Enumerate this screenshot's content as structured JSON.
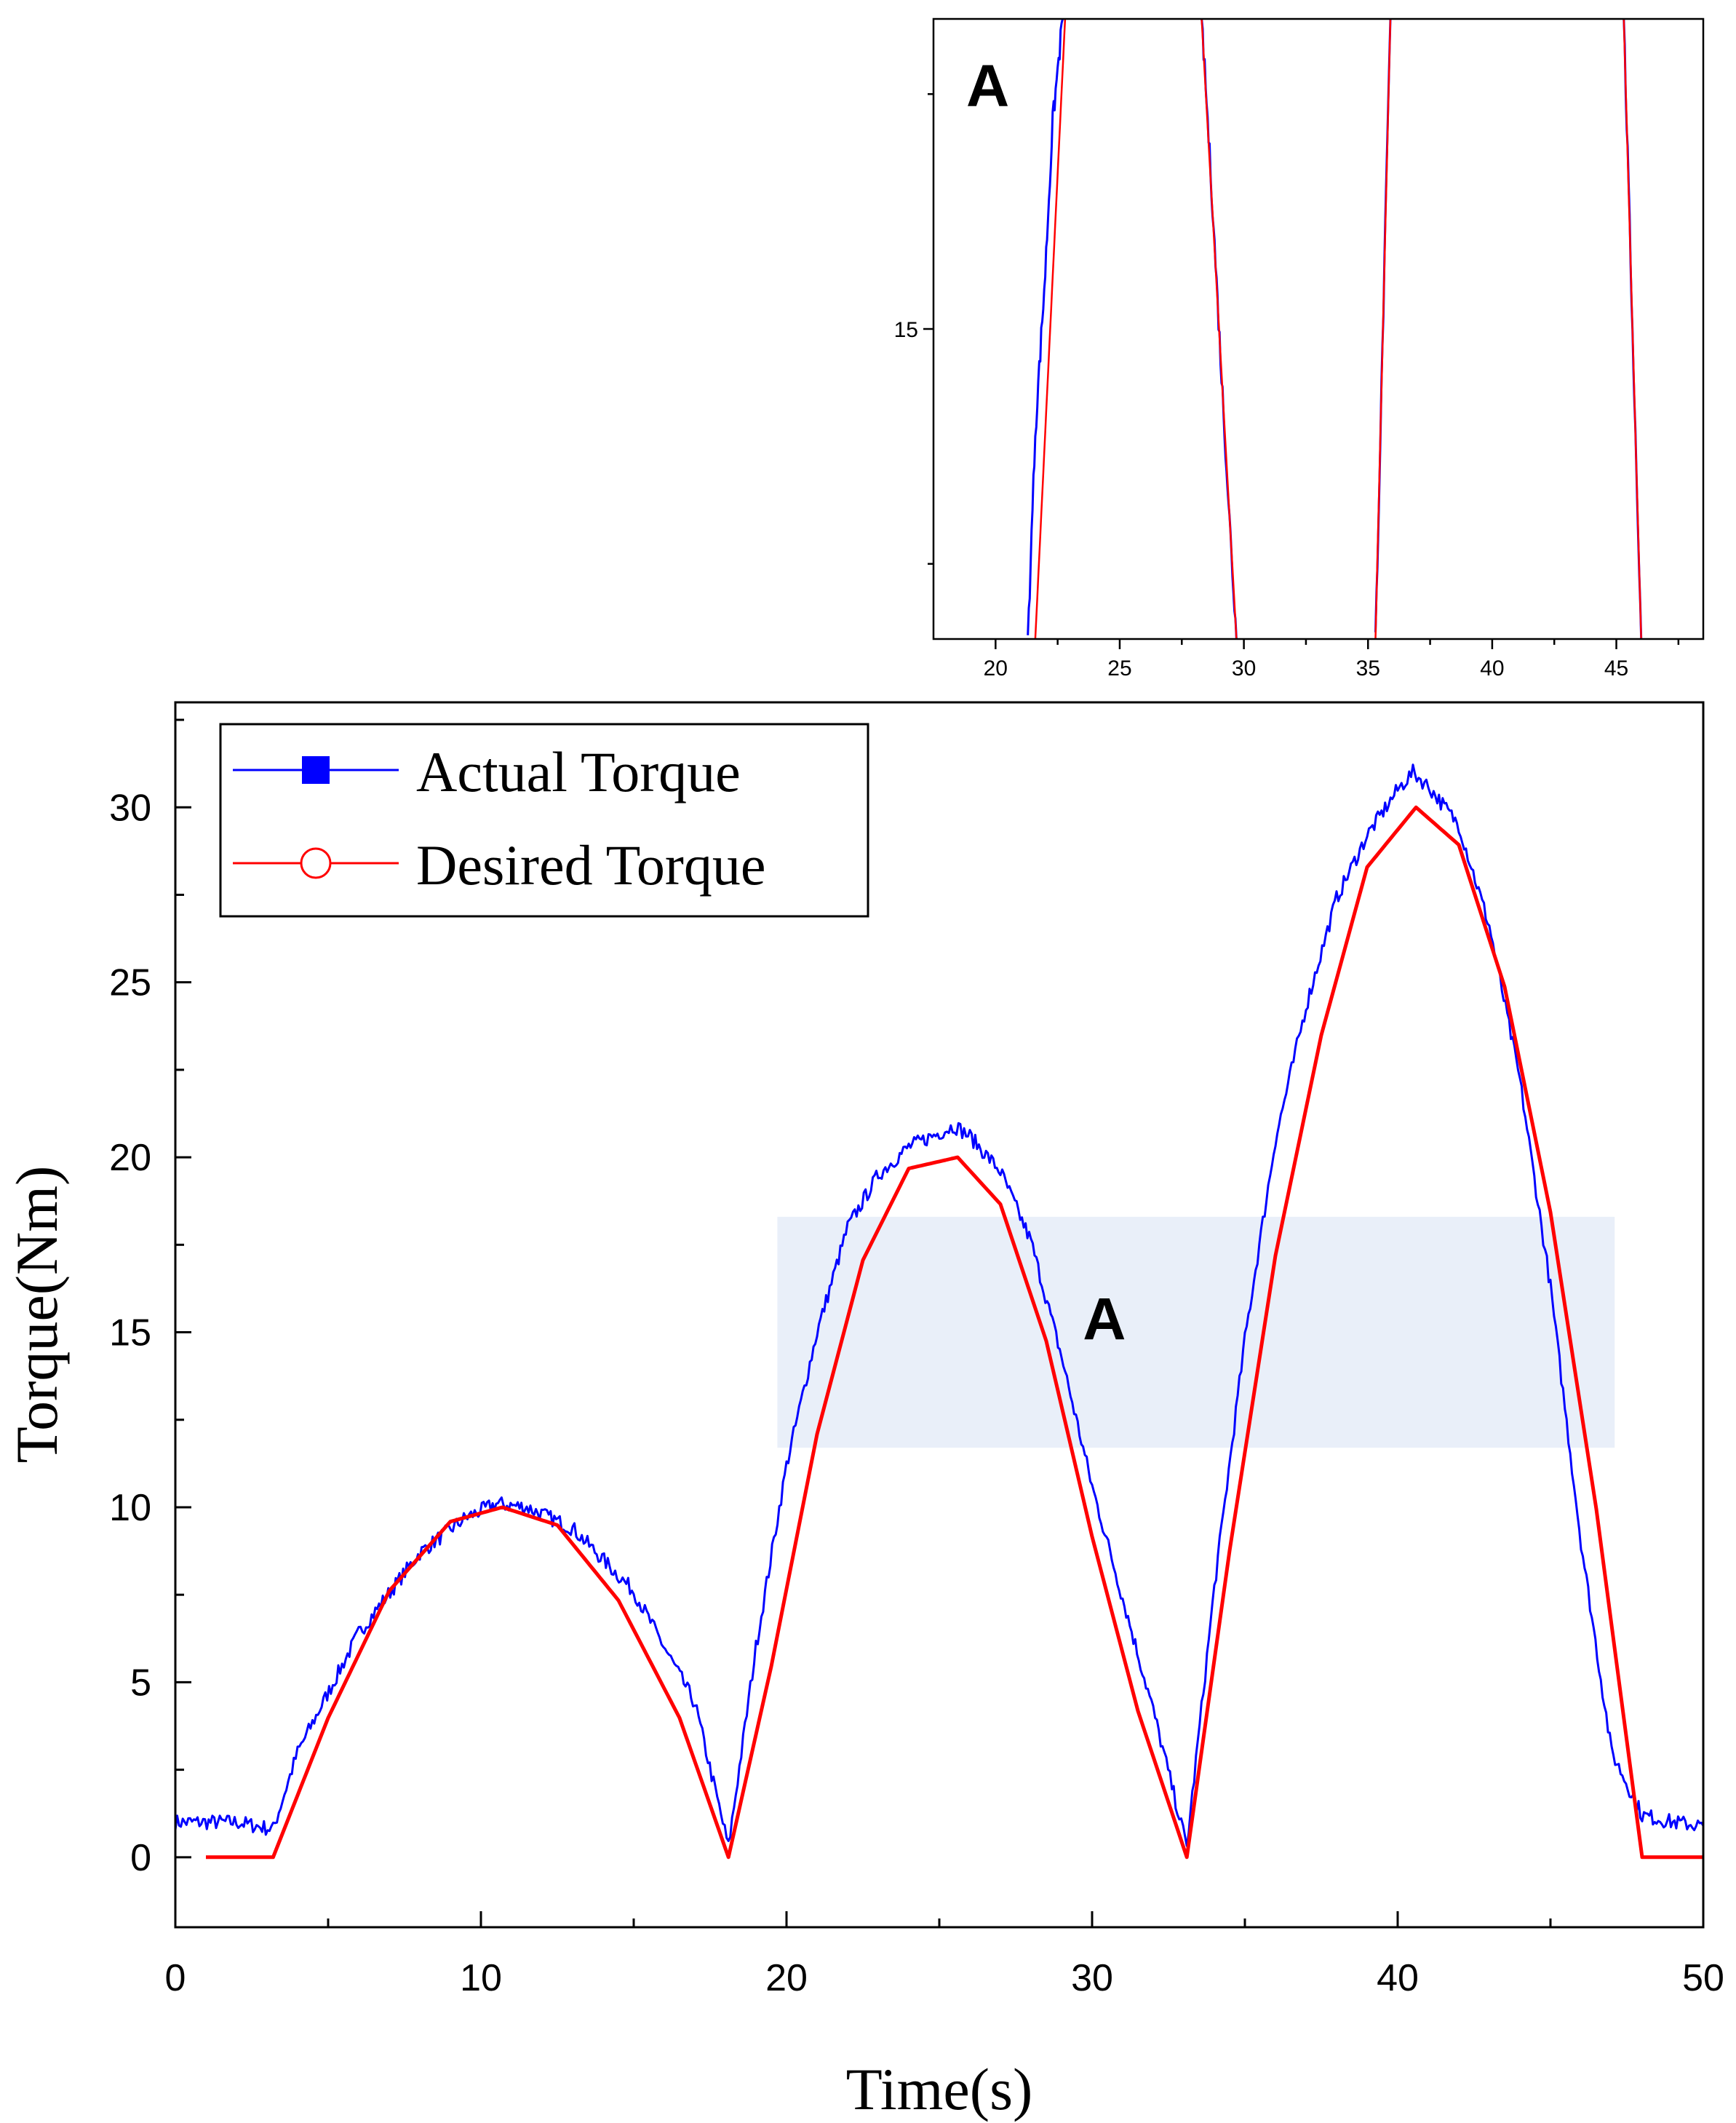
{
  "chart_data": [
    {
      "id": "main",
      "type": "line",
      "title": "",
      "xlabel": "Time(s)",
      "ylabel": "Torque(Nm)",
      "xlim": [
        0,
        50
      ],
      "ylim": [
        -2,
        33
      ],
      "xticks": [
        0,
        10,
        20,
        30,
        40,
        50
      ],
      "yticks": [
        0,
        5,
        10,
        15,
        20,
        25,
        30
      ],
      "legend": {
        "position": "top-left"
      },
      "annotation": {
        "label": "A",
        "x_range": [
          19.7,
          47.1
        ],
        "y_range": [
          11.7,
          18.3
        ],
        "color": "#e9eff9"
      },
      "series": [
        {
          "name": "Actual Torque",
          "color": "#0000ff",
          "marker": "filled-square",
          "x": [
            0.0,
            2.0,
            3.2,
            4.0,
            6.0,
            8.0,
            9.5,
            10.5,
            11.5,
            13.0,
            15.0,
            17.0,
            18.1,
            19.0,
            20.0,
            21.0,
            22.0,
            23.0,
            24.0,
            25.0,
            25.5,
            26.0,
            27.0,
            28.0,
            29.0,
            30.0,
            31.0,
            32.0,
            33.1,
            34.0,
            35.0,
            36.0,
            37.0,
            38.0,
            39.0,
            40.0,
            40.5,
            41.0,
            42.0,
            43.0,
            44.0,
            45.0,
            46.0,
            47.0,
            48.0,
            49.0,
            50.0
          ],
          "y": [
            1.0,
            1.0,
            0.8,
            3.0,
            6.4,
            8.7,
            9.7,
            10.1,
            10.0,
            9.4,
            7.6,
            4.4,
            0.3,
            6.0,
            11.2,
            15.0,
            18.0,
            19.5,
            20.3,
            20.7,
            20.9,
            20.6,
            19.6,
            17.6,
            14.3,
            10.6,
            7.4,
            4.2,
            0.3,
            7.7,
            14.8,
            20.5,
            24.3,
            27.4,
            29.2,
            30.5,
            31.0,
            30.6,
            29.5,
            26.6,
            22.2,
            16.3,
            9.0,
            3.0,
            1.2,
            1.0,
            0.9
          ]
        },
        {
          "name": "Desired Torque",
          "color": "#ff0000",
          "marker": "open-circle",
          "x": [
            1.0,
            2.0,
            3.2,
            5.0,
            7.0,
            9.0,
            10.7,
            12.5,
            14.5,
            16.5,
            18.1,
            19.5,
            21.0,
            22.5,
            24.0,
            25.6,
            27.0,
            28.5,
            30.0,
            31.5,
            33.1,
            34.5,
            36.0,
            37.5,
            39.0,
            40.6,
            42.0,
            43.5,
            45.0,
            46.5,
            48.0,
            49.0,
            50.0
          ],
          "y": [
            0,
            0,
            0,
            3.98,
            7.61,
            9.59,
            10.0,
            9.49,
            7.34,
            3.98,
            0,
            5.45,
            12.09,
            17.06,
            19.68,
            20.0,
            18.66,
            14.75,
            9.16,
            4.18,
            0,
            8.76,
            17.19,
            23.49,
            28.29,
            30.0,
            28.93,
            24.87,
            18.43,
            9.95,
            0,
            0,
            0
          ]
        }
      ]
    },
    {
      "id": "inset",
      "type": "line",
      "title": "A",
      "xlabel": "",
      "ylabel": "",
      "xlim": [
        17.5,
        48.5
      ],
      "ylim": [
        11.7,
        18.3
      ],
      "xticks": [
        20,
        25,
        30,
        35,
        40,
        45
      ],
      "yticks": [
        15
      ],
      "series": [
        {
          "name": "Actual Torque",
          "color": "#0000ff",
          "x": [
            21.3,
            21.6,
            22.0,
            22.3,
            22.7
          ],
          "y": [
            11.7,
            13.9,
            15.6,
            17.2,
            18.3
          ]
        },
        {
          "name": "Desired Torque",
          "color": "#ff0000",
          "x": [
            21.6,
            22.2,
            22.8
          ],
          "y": [
            11.7,
            15.0,
            18.3
          ]
        },
        {
          "name": "Actual Torque",
          "color": "#0000ff",
          "x": [
            28.3,
            28.7,
            29.1,
            29.5,
            29.7
          ],
          "y": [
            18.3,
            16.5,
            14.5,
            12.6,
            11.7
          ]
        },
        {
          "name": "Desired Torque",
          "color": "#ff0000",
          "x": [
            28.3,
            29.0,
            29.7
          ],
          "y": [
            18.3,
            15.0,
            11.7
          ]
        },
        {
          "name": "Actual Torque",
          "color": "#0000ff",
          "x": [
            35.3,
            35.9
          ],
          "y": [
            11.7,
            18.3
          ]
        },
        {
          "name": "Desired Torque",
          "color": "#ff0000",
          "x": [
            35.3,
            35.9
          ],
          "y": [
            11.7,
            18.3
          ]
        },
        {
          "name": "Actual Torque",
          "color": "#0000ff",
          "x": [
            45.3,
            46.0
          ],
          "y": [
            18.3,
            11.7
          ]
        },
        {
          "name": "Desired Torque",
          "color": "#ff0000",
          "x": [
            45.3,
            46.0
          ],
          "y": [
            18.3,
            11.7
          ]
        }
      ]
    }
  ]
}
